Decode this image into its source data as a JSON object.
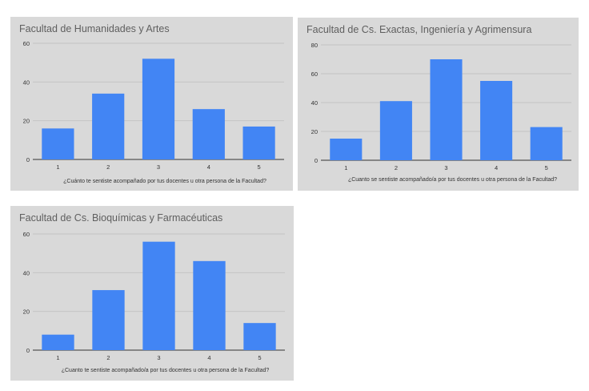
{
  "colors": {
    "bar": "#4285f4",
    "panel_bg": "#d9d9d9",
    "grid": "#c4c4c4",
    "axis": "#333333",
    "text": "#5f5f5f"
  },
  "chart_data": [
    {
      "type": "bar",
      "title": "Facultad de Humanidades y Artes",
      "xlabel": "¿Cuánto te sentiste acompañado por tus docentes u otra persona de la Facultad?",
      "ylabel": "",
      "categories": [
        "1",
        "2",
        "3",
        "4",
        "5"
      ],
      "values": [
        16,
        34,
        52,
        26,
        17
      ],
      "ylim": [
        0,
        60
      ],
      "yticks": [
        0,
        20,
        40,
        60
      ],
      "grid": true
    },
    {
      "type": "bar",
      "title": "Facultad de Cs. Exactas, Ingeniería y Agrimensura",
      "xlabel": "¿Cuanto se sentiste acompañado/a por tus docentes u otra persona de la Facultad?",
      "ylabel": "",
      "categories": [
        "1",
        "2",
        "3",
        "4",
        "5"
      ],
      "values": [
        15,
        41,
        70,
        55,
        23
      ],
      "ylim": [
        0,
        80
      ],
      "yticks": [
        0,
        20,
        40,
        60,
        80
      ],
      "grid": true
    },
    {
      "type": "bar",
      "title": "Facultad de Cs. Bioquímicas y Farmacéuticas",
      "xlabel": "¿Cuanto te sentiste acompañado/a por tus docentes u otra persona de la Facultad?",
      "ylabel": "",
      "categories": [
        "1",
        "2",
        "3",
        "4",
        "5"
      ],
      "values": [
        8,
        31,
        56,
        46,
        14
      ],
      "ylim": [
        0,
        60
      ],
      "yticks": [
        0,
        20,
        40,
        60
      ],
      "grid": true
    }
  ]
}
